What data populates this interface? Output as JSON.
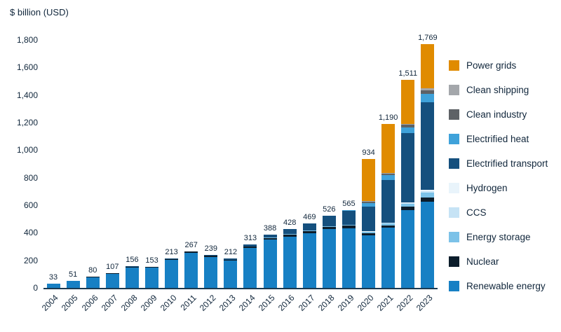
{
  "chart_data": {
    "type": "bar",
    "stacked": true,
    "ylabel": "$ billion (USD)",
    "ylim": [
      0,
      1800
    ],
    "ytick_step": 200,
    "grid": false,
    "legend_position": "right",
    "categories": [
      "2004",
      "2005",
      "2006",
      "2007",
      "2008",
      "2009",
      "2010",
      "2011",
      "2012",
      "2013",
      "2014",
      "2015",
      "2016",
      "2017",
      "2018",
      "2019",
      "2020",
      "2021",
      "2022",
      "2023"
    ],
    "totals": [
      33,
      51,
      80,
      107,
      156,
      153,
      213,
      267,
      239,
      212,
      313,
      388,
      428,
      469,
      526,
      565,
      934,
      1190,
      1511,
      1769
    ],
    "series": [
      {
        "name": "Renewable energy",
        "color": "#1780c4",
        "values": [
          32,
          49,
          77,
          103,
          150,
          146,
          203,
          255,
          225,
          196,
          288,
          349,
          372,
          396,
          425,
          434,
          380,
          435,
          565,
          623
        ]
      },
      {
        "name": "Nuclear",
        "color": "#0c1d2b",
        "values": [
          1,
          2,
          2,
          3,
          4,
          5,
          7,
          8,
          9,
          9,
          12,
          14,
          15,
          16,
          17,
          18,
          18,
          20,
          23,
          33
        ]
      },
      {
        "name": "Energy storage",
        "color": "#7cc2e8",
        "values": [
          0,
          0,
          0,
          0,
          0,
          0,
          0,
          0,
          0,
          0,
          1,
          2,
          3,
          4,
          5,
          6,
          8,
          12,
          20,
          36
        ]
      },
      {
        "name": "CCS",
        "color": "#c6e3f5",
        "values": [
          0,
          0,
          0,
          0,
          0,
          0,
          0,
          0,
          0,
          0,
          0,
          0,
          0,
          0,
          1,
          1,
          3,
          4,
          6,
          11
        ]
      },
      {
        "name": "Hydrogen",
        "color": "#e9f4fb",
        "values": [
          0,
          0,
          0,
          0,
          0,
          0,
          0,
          0,
          0,
          0,
          0,
          0,
          0,
          0,
          0,
          1,
          2,
          3,
          8,
          10
        ]
      },
      {
        "name": "Electrified transport",
        "color": "#15507e",
        "values": [
          0,
          0,
          1,
          1,
          2,
          2,
          3,
          4,
          5,
          7,
          12,
          23,
          38,
          53,
          74,
          98,
          180,
          310,
          500,
          634
        ]
      },
      {
        "name": "Electrified heat",
        "color": "#3fa2da",
        "values": [
          0,
          0,
          0,
          0,
          0,
          0,
          0,
          0,
          0,
          0,
          0,
          0,
          0,
          0,
          4,
          7,
          26,
          35,
          44,
          63
        ]
      },
      {
        "name": "Clean industry",
        "color": "#5e6266",
        "values": [
          0,
          0,
          0,
          0,
          0,
          0,
          0,
          0,
          0,
          0,
          0,
          0,
          0,
          0,
          0,
          0,
          9,
          12,
          18,
          26
        ]
      },
      {
        "name": "Clean shipping",
        "color": "#a4a7ab",
        "values": [
          0,
          0,
          0,
          0,
          0,
          0,
          0,
          0,
          0,
          0,
          0,
          0,
          0,
          0,
          0,
          0,
          3,
          4,
          6,
          12
        ]
      },
      {
        "name": "Power grids",
        "color": "#e08b00",
        "values": [
          0,
          0,
          0,
          0,
          0,
          0,
          0,
          0,
          0,
          0,
          0,
          0,
          0,
          0,
          0,
          0,
          305,
          355,
          321,
          321
        ]
      }
    ]
  }
}
